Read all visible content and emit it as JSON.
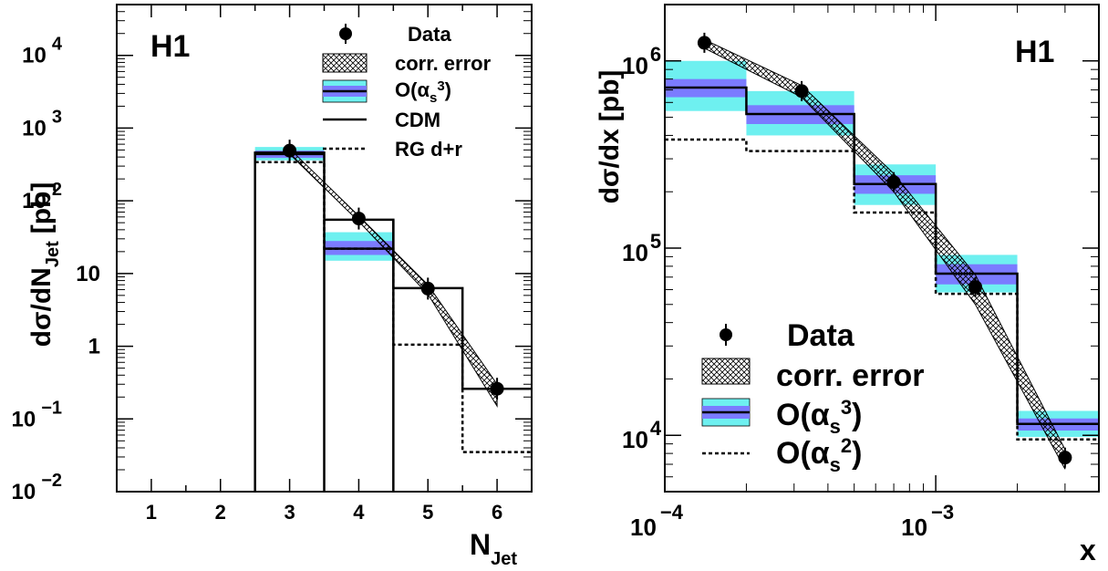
{
  "chart_data": [
    {
      "type": "bar",
      "panel_label": "H1",
      "xlabel": "N",
      "xlabel_sub": "Jet",
      "ylabel": "dσ/dN",
      "ylabel_sub": "Jet",
      "ylabel_unit": "[pb]",
      "yscale": "log",
      "xlim": [
        0.5,
        6.5
      ],
      "ylim": [
        0.01,
        50000
      ],
      "x_ticks": [
        "1",
        "2",
        "3",
        "4",
        "5",
        "6"
      ],
      "y_ticks": [
        {
          "base": "10",
          "exp": "−2"
        },
        {
          "base": "10",
          "exp": "−1"
        },
        {
          "base": "1",
          "exp": ""
        },
        {
          "base": "10",
          "exp": ""
        },
        {
          "base": "10",
          "exp": "2"
        },
        {
          "base": "10",
          "exp": "3"
        },
        {
          "base": "10",
          "exp": "4"
        }
      ],
      "data": {
        "x": [
          3,
          4,
          5,
          6
        ],
        "y": [
          490,
          57,
          6.2,
          0.26
        ]
      },
      "corr_error_band": {
        "x": [
          3,
          4,
          5,
          6
        ],
        "low": [
          440,
          52,
          5.2,
          0.15
        ],
        "high": [
          520,
          62,
          7.0,
          0.3
        ]
      },
      "nlo_alphas3": {
        "bins": [
          [
            2.5,
            3.5
          ],
          [
            3.5,
            4.5
          ]
        ],
        "central": [
          440,
          22
        ],
        "scale_low": [
          390,
          18
        ],
        "scale_high": [
          490,
          28
        ],
        "total_low": [
          360,
          15
        ],
        "total_high": [
          550,
          37
        ]
      },
      "cdm": {
        "bins": [
          [
            2.5,
            3.5
          ],
          [
            3.5,
            4.5
          ],
          [
            4.5,
            5.5
          ],
          [
            5.5,
            6.5
          ]
        ],
        "values": [
          460,
          55,
          6.3,
          0.26
        ]
      },
      "rg_dr": {
        "bins": [
          [
            2.5,
            3.5
          ],
          [
            3.5,
            4.5
          ],
          [
            4.5,
            5.5
          ],
          [
            5.5,
            6.5
          ]
        ],
        "values": [
          340,
          22,
          1.05,
          0.035
        ]
      },
      "legend": {
        "data": "Data",
        "corr": "corr. error",
        "nlo": "O(α",
        "nlo_sub": "s",
        "nlo_sup": "3",
        "cdm": "CDM",
        "rg": "RG d+r"
      },
      "legend_position": "top-right",
      "colors": {
        "inner_band": "#7b7bff",
        "outer_band": "#6ef0f0",
        "line": "#000000"
      }
    },
    {
      "type": "bar",
      "panel_label": "H1",
      "xlabel": "x",
      "ylabel": "dσ/dx",
      "ylabel_unit": "[pb]",
      "xscale": "log",
      "yscale": "log",
      "xlim": [
        0.0001,
        0.004
      ],
      "ylim": [
        5000,
        2000000
      ],
      "x_ticks": [
        {
          "base": "10",
          "exp": "−4"
        },
        {
          "base": "10",
          "exp": "−3"
        }
      ],
      "y_ticks": [
        {
          "base": "10",
          "exp": "4"
        },
        {
          "base": "10",
          "exp": "5"
        },
        {
          "base": "10",
          "exp": "6"
        }
      ],
      "bin_edges": [
        0.0001,
        0.0002,
        0.0005,
        0.001,
        0.002,
        0.004
      ],
      "data": {
        "x": [
          0.00014,
          0.00032,
          0.0007,
          0.0014,
          0.003
        ],
        "y": [
          1250000,
          690000,
          225000,
          62000,
          7600
        ]
      },
      "corr_error_band": {
        "x": [
          0.00014,
          0.00032,
          0.0007,
          0.0014,
          0.003
        ],
        "low": [
          1170000,
          640000,
          200000,
          50000,
          6600
        ],
        "high": [
          1300000,
          740000,
          250000,
          72000,
          8400
        ]
      },
      "nlo_alphas3": {
        "central": [
          720000,
          520000,
          220000,
          73000,
          11500
        ],
        "scale_low": [
          640000,
          460000,
          195000,
          64000,
          10600
        ],
        "scale_high": [
          800000,
          580000,
          245000,
          82000,
          12300
        ],
        "total_low": [
          540000,
          400000,
          170000,
          58000,
          9800
        ],
        "total_high": [
          1000000,
          690000,
          280000,
          92000,
          13500
        ]
      },
      "nlo_alphas2": {
        "values": [
          380000,
          330000,
          155000,
          57000,
          9500
        ]
      },
      "legend": {
        "data": "Data",
        "corr": "corr. error",
        "nlo3": "O(α",
        "nlo3_sub": "s",
        "nlo3_sup": "3",
        "nlo2": "O(α",
        "nlo2_sub": "s",
        "nlo2_sup": "2"
      },
      "legend_position": "bottom-left",
      "colors": {
        "inner_band": "#7b7bff",
        "outer_band": "#6ef0f0",
        "line": "#000000"
      }
    }
  ]
}
